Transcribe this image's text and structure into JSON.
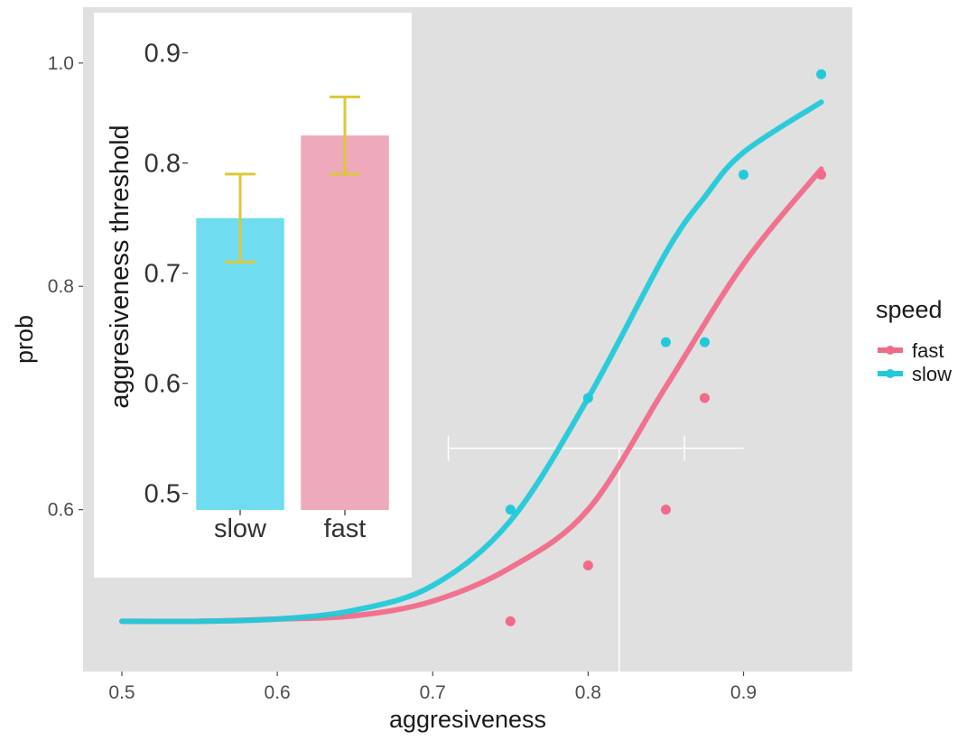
{
  "chart_data": [
    {
      "type": "line",
      "title": "",
      "xlabel": "aggresiveness",
      "ylabel": "prob",
      "xlim": [
        0.475,
        0.97
      ],
      "ylim": [
        0.455,
        1.05
      ],
      "x_ticks": [
        0.5,
        0.6,
        0.7,
        0.8,
        0.9
      ],
      "x_tick_labels": [
        "0.5",
        "0.6",
        "0.7",
        "0.8",
        "0.9"
      ],
      "y_ticks": [
        0.6,
        0.8,
        1.0
      ],
      "y_tick_labels": [
        "0.6",
        "0.8",
        "1.0"
      ],
      "background": "#e0e0e0",
      "grid": false,
      "legend": {
        "title": "speed",
        "position": "right",
        "entries": [
          {
            "label": "fast",
            "color": "#f06b8a"
          },
          {
            "label": "slow",
            "color": "#22c9d9"
          }
        ]
      },
      "series": [
        {
          "name": "fast",
          "color": "#f06b8a",
          "curve": {
            "x": [
              0.5,
              0.55,
              0.6,
              0.65,
              0.7,
              0.75,
              0.8,
              0.85,
              0.9,
              0.95
            ],
            "y": [
              0.5,
              0.5,
              0.502,
              0.505,
              0.518,
              0.548,
              0.6,
              0.71,
              0.82,
              0.905
            ]
          },
          "points": {
            "x": [
              0.75,
              0.8,
              0.85,
              0.875,
              0.95
            ],
            "y": [
              0.5,
              0.55,
              0.6,
              0.7,
              0.9
            ]
          }
        },
        {
          "name": "slow",
          "color": "#22c9d9",
          "curve": {
            "x": [
              0.5,
              0.55,
              0.6,
              0.65,
              0.7,
              0.75,
              0.8,
              0.85,
              0.875,
              0.9,
              0.95
            ],
            "y": [
              0.5,
              0.5,
              0.502,
              0.51,
              0.532,
              0.59,
              0.7,
              0.83,
              0.88,
              0.92,
              0.965
            ]
          },
          "points": {
            "x": [
              0.75,
              0.8,
              0.85,
              0.875,
              0.9,
              0.95
            ],
            "y": [
              0.6,
              0.7,
              0.75,
              0.75,
              0.9,
              0.99
            ]
          }
        }
      ],
      "annotations": [
        {
          "type": "errorbar-horizontal",
          "y": 0.655,
          "xmin": 0.71,
          "xmax": 0.862
        },
        {
          "type": "reference-line-horizontal",
          "y": 0.655,
          "xmin": 0.862,
          "xmax": 0.9
        },
        {
          "type": "reference-line-vertical",
          "x": 0.82,
          "ymin": 0.455,
          "ymax": 0.655
        }
      ]
    },
    {
      "type": "bar",
      "title": "",
      "xlabel": "",
      "ylabel": "aggresiveness threshold",
      "categories": [
        "slow",
        "fast"
      ],
      "values": [
        0.75,
        0.825
      ],
      "errors": [
        {
          "low": 0.71,
          "high": 0.79
        },
        {
          "low": 0.79,
          "high": 0.86
        }
      ],
      "bar_colors": [
        "#6fdcf0",
        "#eea9ba"
      ],
      "errorbar_color": "#dcc83a",
      "ylim": [
        0.485,
        0.93
      ],
      "y_ticks": [
        0.5,
        0.6,
        0.7,
        0.8,
        0.9
      ],
      "y_tick_labels": [
        "0.5",
        "0.6",
        "0.7",
        "0.8",
        "0.9"
      ],
      "grid": false
    }
  ]
}
